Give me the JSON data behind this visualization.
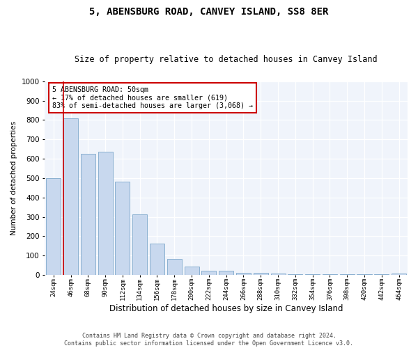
{
  "title": "5, ABENSBURG ROAD, CANVEY ISLAND, SS8 8ER",
  "subtitle": "Size of property relative to detached houses in Canvey Island",
  "xlabel": "Distribution of detached houses by size in Canvey Island",
  "ylabel": "Number of detached properties",
  "footer_line1": "Contains HM Land Registry data © Crown copyright and database right 2024.",
  "footer_line2": "Contains public sector information licensed under the Open Government Licence v3.0.",
  "annotation_line1": "5 ABENSBURG ROAD: 50sqm",
  "annotation_line2": "← 17% of detached houses are smaller (619)",
  "annotation_line3": "83% of semi-detached houses are larger (3,068) →",
  "bar_color": "#c8d8ee",
  "bar_edge_color": "#8ab0d0",
  "vline_color": "#cc0000",
  "vline_x_index": 1,
  "categories": [
    "24sqm",
    "46sqm",
    "68sqm",
    "90sqm",
    "112sqm",
    "134sqm",
    "156sqm",
    "178sqm",
    "200sqm",
    "222sqm",
    "244sqm",
    "266sqm",
    "288sqm",
    "310sqm",
    "332sqm",
    "354sqm",
    "376sqm",
    "398sqm",
    "420sqm",
    "442sqm",
    "464sqm"
  ],
  "values": [
    500,
    810,
    625,
    635,
    480,
    312,
    162,
    82,
    45,
    22,
    20,
    12,
    10,
    8,
    5,
    5,
    2,
    2,
    2,
    2,
    7
  ],
  "ylim": [
    0,
    1000
  ],
  "yticks": [
    0,
    100,
    200,
    300,
    400,
    500,
    600,
    700,
    800,
    900,
    1000
  ],
  "background_color": "#ffffff",
  "plot_bg_color": "#f0f4fb",
  "grid_color": "#ffffff",
  "title_fontsize": 10,
  "subtitle_fontsize": 8.5,
  "annotation_edge_color": "#cc0000"
}
